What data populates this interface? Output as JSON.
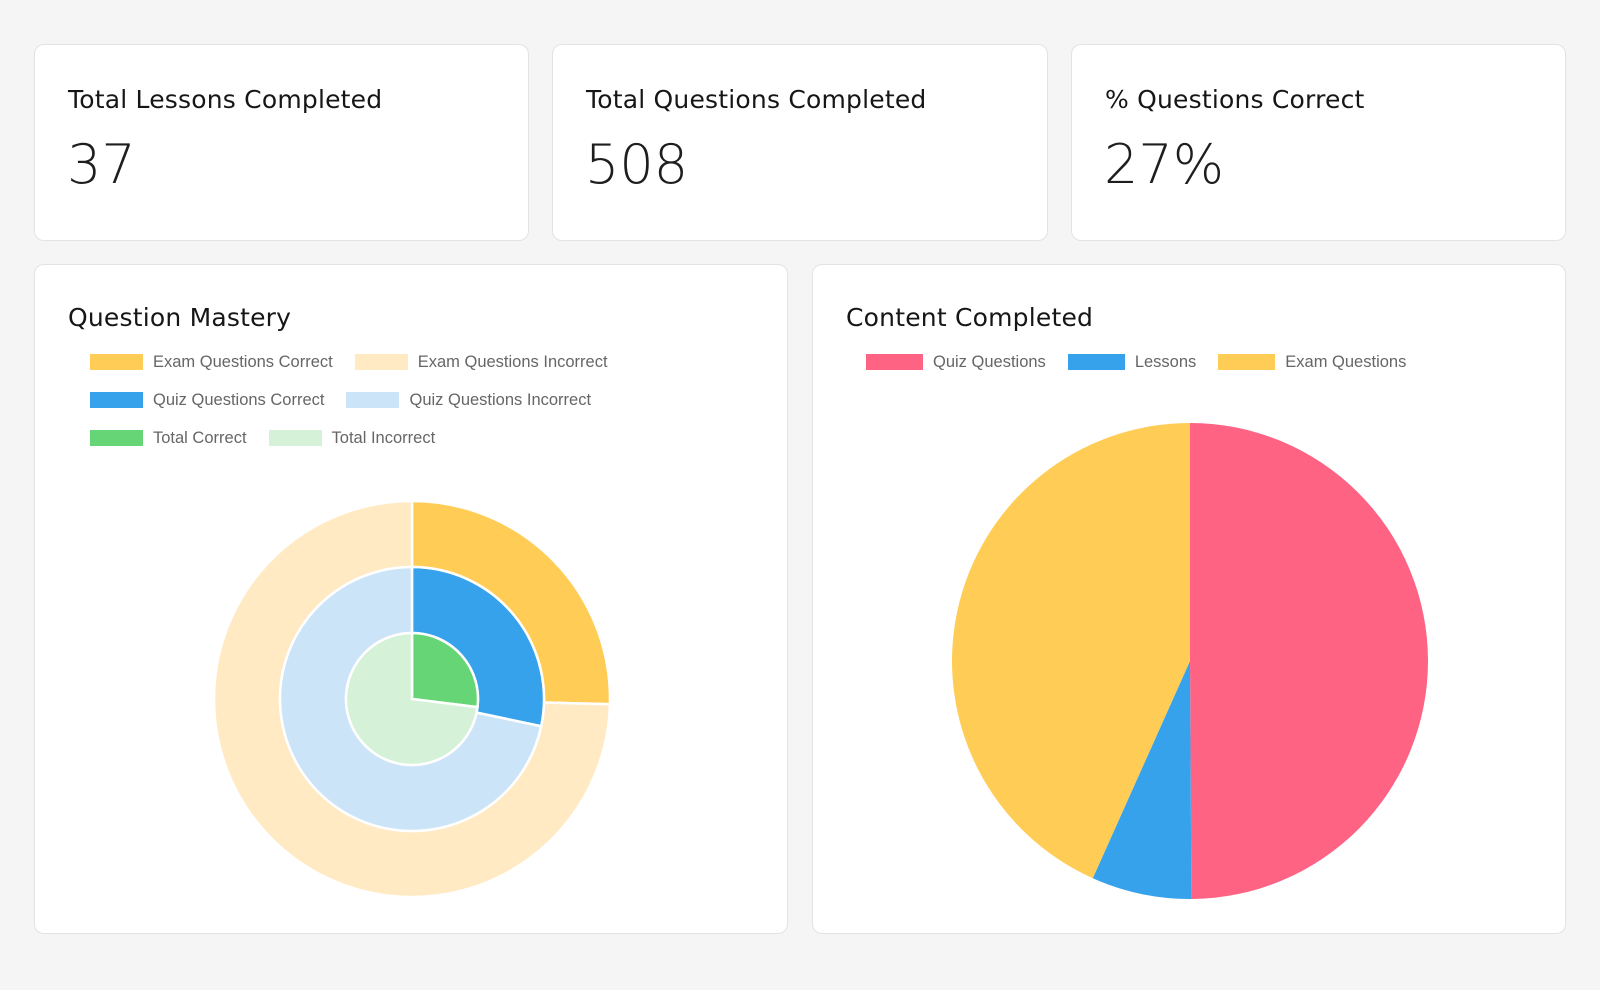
{
  "stats": [
    {
      "title": "Total Lessons Completed",
      "value": "37"
    },
    {
      "title": "Total Questions Completed",
      "value": "508"
    },
    {
      "title": "% Questions Correct",
      "value": "27%"
    }
  ],
  "chart_data": [
    {
      "type": "pie",
      "variant": "nested-doughnut",
      "title": "Question Mastery",
      "legend_position": "top",
      "legend": [
        {
          "label": "Exam Questions Correct",
          "color": "#ffcd56"
        },
        {
          "label": "Exam Questions Incorrect",
          "color": "#ffeac4"
        },
        {
          "label": "Quiz Questions Correct",
          "color": "#36a2eb"
        },
        {
          "label": "Quiz Questions Incorrect",
          "color": "#cce4f8"
        },
        {
          "label": "Total Correct",
          "color": "#66d575"
        },
        {
          "label": "Total Incorrect",
          "color": "#d5f2d9"
        }
      ],
      "series": [
        {
          "name": "Exam Questions",
          "ring": "outer",
          "labels": [
            "Exam Questions Correct",
            "Exam Questions Incorrect"
          ],
          "values": [
            60,
            176
          ],
          "colors": [
            "#ffcd56",
            "#ffeac4"
          ]
        },
        {
          "name": "Quiz Questions",
          "ring": "middle",
          "labels": [
            "Quiz Questions Correct",
            "Quiz Questions Incorrect"
          ],
          "values": [
            77,
            195
          ],
          "colors": [
            "#36a2eb",
            "#cce4f8"
          ]
        },
        {
          "name": "Total",
          "ring": "inner",
          "labels": [
            "Total Correct",
            "Total Incorrect"
          ],
          "values": [
            137,
            371
          ],
          "colors": [
            "#66d575",
            "#d5f2d9"
          ]
        }
      ]
    },
    {
      "type": "pie",
      "title": "Content Completed",
      "legend_position": "top",
      "categories": [
        "Quiz Questions",
        "Lessons",
        "Exam Questions"
      ],
      "values": [
        272,
        37,
        236
      ],
      "colors": [
        "#ff6384",
        "#36a2eb",
        "#ffcd56"
      ]
    }
  ]
}
